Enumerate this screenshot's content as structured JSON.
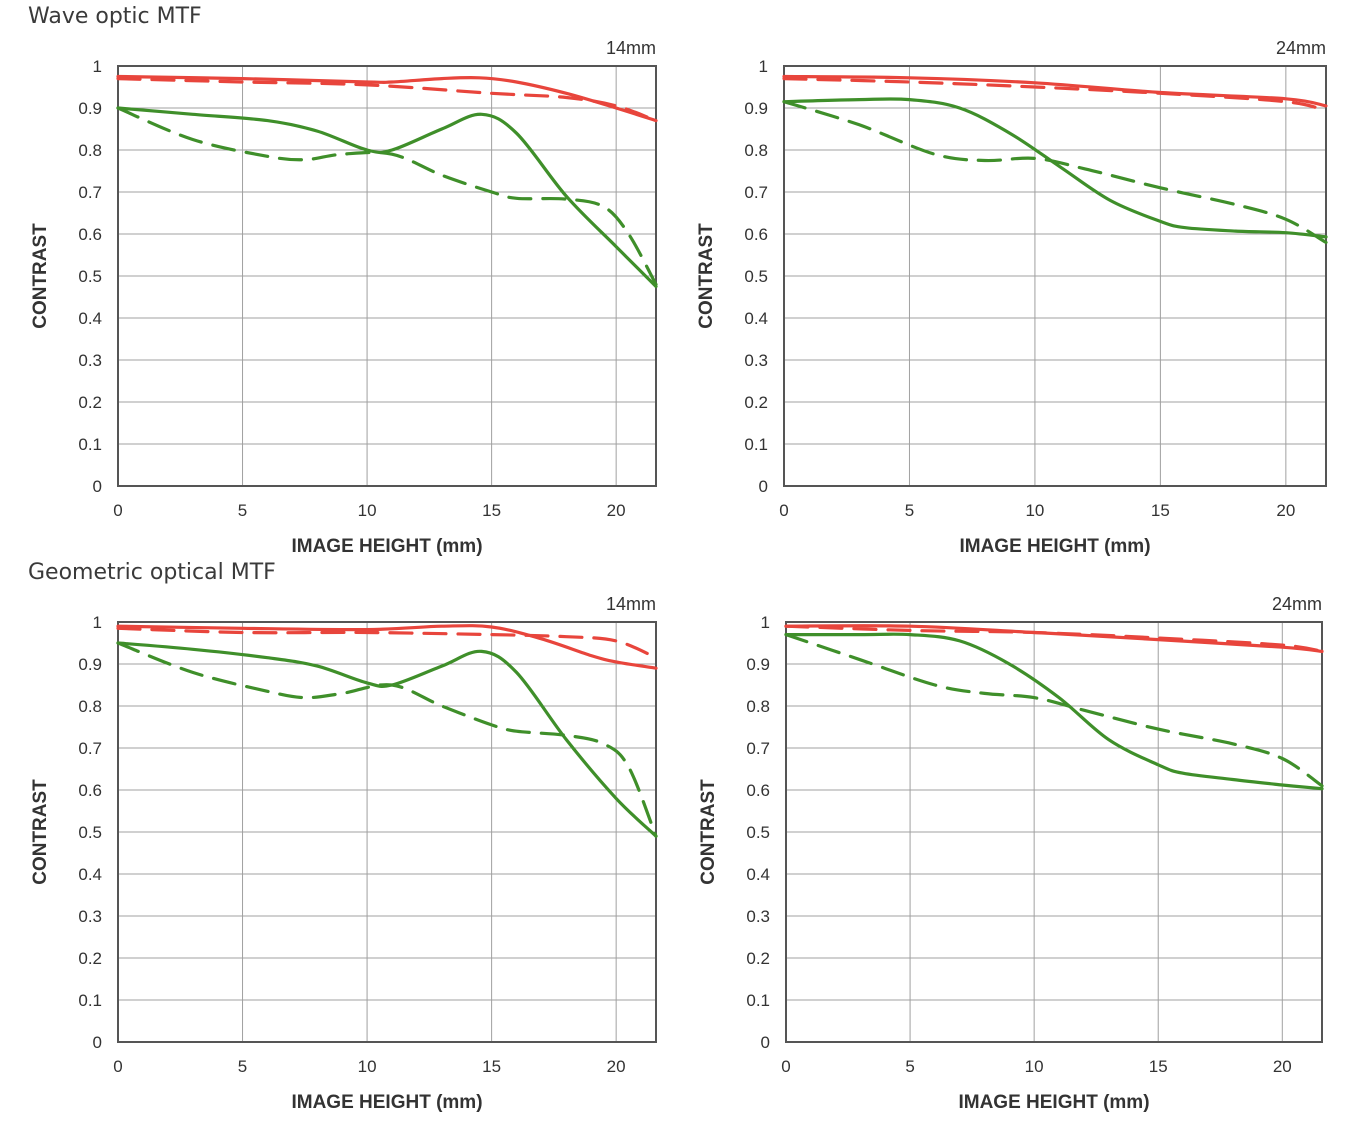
{
  "sections": {
    "wave_title": "Wave optic MTF",
    "geometric_title": "Geometric optical MTF"
  },
  "colors": {
    "red": "#e8453c",
    "green": "#3f8f2a",
    "grid": "#a0a0a0",
    "frame": "#555555"
  },
  "chart_data": [
    {
      "type": "line",
      "section": "Wave optic MTF",
      "focal_label": "14mm",
      "xlabel": "IMAGE HEIGHT (mm)",
      "ylabel": "CONTRAST",
      "xlim": [
        0,
        21.6
      ],
      "ylim": [
        0,
        1
      ],
      "xticks": [
        "0",
        "5",
        "10",
        "15",
        "20"
      ],
      "yticks": [
        "0",
        "0.1",
        "0.2",
        "0.3",
        "0.4",
        "0.5",
        "0.6",
        "0.7",
        "0.8",
        "0.9",
        "1"
      ],
      "grid": true,
      "series": [
        {
          "name": "red-sagittal",
          "color": "red",
          "dash": false,
          "x": [
            0,
            5,
            10,
            11,
            13,
            14.5,
            16,
            18,
            20,
            21.6
          ],
          "y": [
            0.975,
            0.97,
            0.962,
            0.962,
            0.97,
            0.972,
            0.962,
            0.935,
            0.9,
            0.87
          ]
        },
        {
          "name": "red-meridional",
          "color": "red",
          "dash": true,
          "x": [
            0,
            5,
            10,
            15,
            18,
            20,
            21.6
          ],
          "y": [
            0.97,
            0.962,
            0.955,
            0.935,
            0.925,
            0.905,
            0.87
          ]
        },
        {
          "name": "green-sagittal",
          "color": "green",
          "dash": false,
          "x": [
            0,
            3,
            6,
            8,
            10,
            11,
            13,
            14.6,
            16,
            18,
            20,
            21.6
          ],
          "y": [
            0.9,
            0.885,
            0.87,
            0.845,
            0.8,
            0.8,
            0.85,
            0.885,
            0.84,
            0.69,
            0.57,
            0.475
          ]
        },
        {
          "name": "green-meridional",
          "color": "green",
          "dash": true,
          "x": [
            0,
            3,
            6,
            7.5,
            9,
            11,
            13,
            15,
            16,
            18,
            19.5,
            20.5,
            21.6
          ],
          "y": [
            0.9,
            0.825,
            0.785,
            0.777,
            0.79,
            0.79,
            0.74,
            0.7,
            0.685,
            0.683,
            0.665,
            0.6,
            0.48
          ]
        }
      ]
    },
    {
      "type": "line",
      "section": "Wave optic MTF",
      "focal_label": "24mm",
      "xlabel": "IMAGE HEIGHT (mm)",
      "ylabel": "CONTRAST",
      "xlim": [
        0,
        21.6
      ],
      "ylim": [
        0,
        1
      ],
      "xticks": [
        "0",
        "5",
        "10",
        "15",
        "20"
      ],
      "yticks": [
        "0",
        "0.1",
        "0.2",
        "0.3",
        "0.4",
        "0.5",
        "0.6",
        "0.7",
        "0.8",
        "0.9",
        "1"
      ],
      "grid": true,
      "series": [
        {
          "name": "red-sagittal",
          "color": "red",
          "dash": false,
          "x": [
            0,
            5,
            10,
            15,
            20,
            21.6
          ],
          "y": [
            0.975,
            0.972,
            0.96,
            0.937,
            0.922,
            0.905
          ]
        },
        {
          "name": "red-meridional",
          "color": "red",
          "dash": true,
          "x": [
            0,
            5,
            10,
            15,
            20,
            21.6
          ],
          "y": [
            0.97,
            0.962,
            0.95,
            0.935,
            0.915,
            0.893
          ]
        },
        {
          "name": "green-sagittal",
          "color": "green",
          "dash": false,
          "x": [
            0,
            3,
            5,
            7,
            9,
            11,
            13,
            15,
            16,
            18,
            20,
            21.6
          ],
          "y": [
            0.915,
            0.92,
            0.92,
            0.9,
            0.84,
            0.76,
            0.68,
            0.63,
            0.615,
            0.607,
            0.603,
            0.593
          ]
        },
        {
          "name": "green-meridional",
          "color": "green",
          "dash": true,
          "x": [
            0,
            3,
            6,
            8,
            10,
            12,
            15,
            18,
            20,
            21.6
          ],
          "y": [
            0.915,
            0.86,
            0.79,
            0.775,
            0.78,
            0.755,
            0.71,
            0.67,
            0.635,
            0.58
          ]
        }
      ]
    },
    {
      "type": "line",
      "section": "Geometric optical MTF",
      "focal_label": "14mm",
      "xlabel": "IMAGE HEIGHT (mm)",
      "ylabel": "CONTRAST",
      "xlim": [
        0,
        21.6
      ],
      "ylim": [
        0,
        1
      ],
      "xticks": [
        "0",
        "5",
        "10",
        "15",
        "20"
      ],
      "yticks": [
        "0",
        "0.1",
        "0.2",
        "0.3",
        "0.4",
        "0.5",
        "0.6",
        "0.7",
        "0.8",
        "0.9",
        "1"
      ],
      "grid": true,
      "series": [
        {
          "name": "red-sagittal",
          "color": "red",
          "dash": false,
          "x": [
            0,
            5,
            10,
            13,
            15,
            17,
            19,
            20,
            21.6
          ],
          "y": [
            0.99,
            0.985,
            0.982,
            0.99,
            0.988,
            0.96,
            0.92,
            0.905,
            0.89
          ]
        },
        {
          "name": "red-meridional",
          "color": "red",
          "dash": true,
          "x": [
            0,
            5,
            10,
            15,
            18,
            20,
            21.6
          ],
          "y": [
            0.985,
            0.975,
            0.975,
            0.97,
            0.965,
            0.955,
            0.915
          ]
        },
        {
          "name": "green-sagittal",
          "color": "green",
          "dash": false,
          "x": [
            0,
            3,
            6,
            8,
            10,
            11,
            13,
            14.6,
            16,
            18,
            20,
            21.6
          ],
          "y": [
            0.95,
            0.935,
            0.915,
            0.895,
            0.855,
            0.85,
            0.895,
            0.93,
            0.88,
            0.72,
            0.58,
            0.49
          ]
        },
        {
          "name": "green-meridional",
          "color": "green",
          "dash": true,
          "x": [
            0,
            3,
            6,
            7.5,
            9,
            11,
            13,
            15,
            16,
            18,
            19.5,
            20.5,
            21.6
          ],
          "y": [
            0.95,
            0.88,
            0.835,
            0.82,
            0.83,
            0.85,
            0.8,
            0.755,
            0.74,
            0.73,
            0.71,
            0.655,
            0.49
          ]
        }
      ]
    },
    {
      "type": "line",
      "section": "Geometric optical MTF",
      "focal_label": "24mm",
      "xlabel": "IMAGE HEIGHT (mm)",
      "ylabel": "CONTRAST",
      "xlim": [
        0,
        21.6
      ],
      "ylim": [
        0,
        1
      ],
      "xticks": [
        "0",
        "5",
        "10",
        "15",
        "20"
      ],
      "yticks": [
        "0",
        "0.1",
        "0.2",
        "0.3",
        "0.4",
        "0.5",
        "0.6",
        "0.7",
        "0.8",
        "0.9",
        "1"
      ],
      "grid": true,
      "series": [
        {
          "name": "red-sagittal",
          "color": "red",
          "dash": false,
          "x": [
            0,
            5,
            10,
            15,
            20,
            21.6
          ],
          "y": [
            0.99,
            0.99,
            0.975,
            0.958,
            0.94,
            0.93
          ]
        },
        {
          "name": "red-meridional",
          "color": "red",
          "dash": true,
          "x": [
            0,
            5,
            10,
            15,
            20,
            21.6
          ],
          "y": [
            0.99,
            0.98,
            0.975,
            0.962,
            0.945,
            0.93
          ]
        },
        {
          "name": "green-sagittal",
          "color": "green",
          "dash": false,
          "x": [
            0,
            3,
            5,
            7,
            9,
            11,
            13,
            15,
            16,
            18,
            20,
            21.6
          ],
          "y": [
            0.97,
            0.97,
            0.97,
            0.955,
            0.9,
            0.82,
            0.72,
            0.66,
            0.64,
            0.625,
            0.612,
            0.603
          ]
        },
        {
          "name": "green-meridional",
          "color": "green",
          "dash": true,
          "x": [
            0,
            3,
            6,
            8,
            10,
            12,
            15,
            18,
            20,
            21.6
          ],
          "y": [
            0.97,
            0.91,
            0.85,
            0.83,
            0.82,
            0.79,
            0.745,
            0.71,
            0.675,
            0.61
          ]
        }
      ]
    }
  ]
}
